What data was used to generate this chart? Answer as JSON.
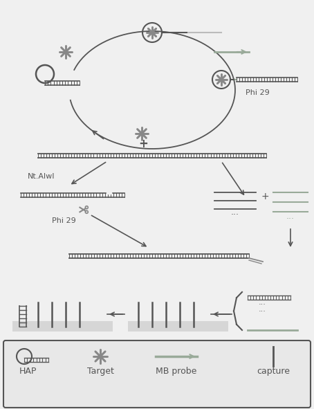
{
  "bg_color": "#f0f0f0",
  "dark_gray": "#555555",
  "medium_gray": "#888888",
  "light_gray": "#bbbbbb",
  "green_gray": "#99aa99",
  "fig_bg": "#f0f0f0",
  "legend_box_color": "#e8e8e8",
  "labels": [
    "HAP",
    "Target",
    "MB probe",
    "capture"
  ],
  "phi29_label": "Phi 29",
  "phi29_label2": "Phi 29",
  "nt_alwi_label": "Nt.AlwI",
  "plus_sign": "+"
}
